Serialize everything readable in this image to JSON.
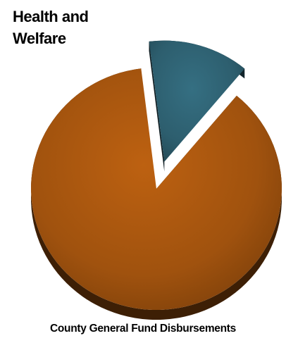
{
  "chart_data": {
    "type": "pie",
    "title": "",
    "caption": "County General Fund Disbursements",
    "slices": [
      {
        "label": "Health and Welfare",
        "value": 13,
        "color": "#2d5e6e",
        "exploded": true
      },
      {
        "label": "",
        "value": 87,
        "color": "#a0520e",
        "exploded": false
      }
    ],
    "annotations": [
      "Health and Welfare"
    ],
    "style": "3d-exploded"
  }
}
